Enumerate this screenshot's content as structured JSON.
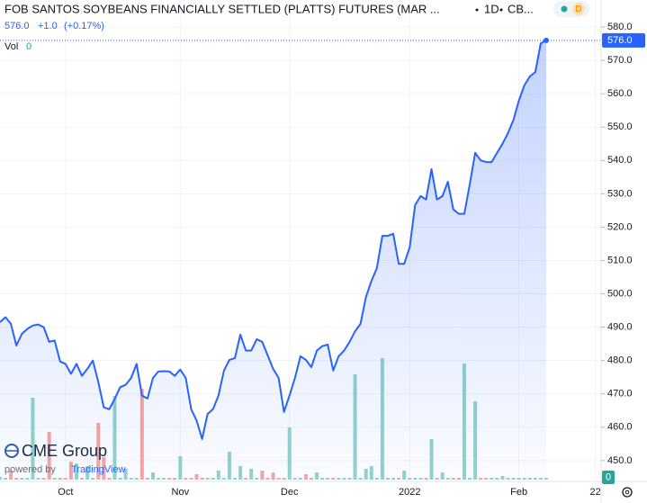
{
  "chart_data": {
    "type": "line",
    "title": "FOB SANTOS SOYBEANS FINANCIALLY SETTLED (PLATTS) FUTURES (MAR ...",
    "interval": "1D",
    "exchange": "CB...",
    "price": {
      "value": 576,
      "label": "576.0"
    },
    "change": {
      "value": 1,
      "label": "+1.0"
    },
    "change_pct": {
      "value": 0.17,
      "label": "(+0.17%)"
    },
    "color": "#2962ff",
    "grid": true,
    "categories": [
      null,
      null,
      null,
      null,
      null,
      null,
      null,
      null,
      null,
      null,
      null,
      null,
      "Oct",
      null,
      null,
      null,
      null,
      null,
      null,
      null,
      null,
      null,
      null,
      null,
      null,
      null,
      null,
      null,
      null,
      null,
      null,
      null,
      null,
      "Nov",
      null,
      null,
      null,
      null,
      null,
      null,
      null,
      null,
      null,
      null,
      null,
      null,
      null,
      null,
      null,
      null,
      null,
      null,
      null,
      "Dec",
      null,
      null,
      null,
      null,
      null,
      null,
      null,
      null,
      null,
      null,
      null,
      null,
      null,
      null,
      null,
      null,
      null,
      null,
      null,
      null,
      null,
      "2022",
      null,
      null,
      null,
      null,
      null,
      null,
      null,
      null,
      null,
      null,
      null,
      null,
      null,
      null,
      null,
      null,
      null,
      null,
      null,
      "Feb",
      null,
      null,
      null,
      null,
      null,
      null,
      null,
      null,
      null,
      null,
      null,
      null,
      null,
      "22"
    ],
    "values": [
      491.5,
      493,
      491,
      484.5,
      488,
      489.5,
      490.5,
      490.8,
      490,
      485.6,
      486,
      479.7,
      479,
      476,
      479,
      475.4,
      477.5,
      480,
      473.5,
      466,
      465.4,
      468.5,
      472,
      472.7,
      474.8,
      479,
      469.5,
      468.6,
      474.8,
      476.7,
      476.8,
      476.7,
      475.4,
      477.3,
      474.8,
      465.4,
      462,
      456.5,
      464,
      465.4,
      469.5,
      477,
      480.2,
      480.7,
      487.8,
      483,
      483,
      486.4,
      485.6,
      481.6,
      477.5,
      474.8,
      464.6,
      469.5,
      474.8,
      481.3,
      480.2,
      478,
      483,
      484.3,
      484.8,
      477,
      481.3,
      483,
      485.6,
      488.8,
      491,
      499.1,
      503.9,
      507.7,
      517.4,
      517.4,
      518,
      509,
      509,
      514,
      526.6,
      529.3,
      528.3,
      537.4,
      528.3,
      529.3,
      533.6,
      525.3,
      524,
      524,
      532.8,
      542.3,
      540,
      539.5,
      539.5,
      542.3,
      545,
      548.2,
      552.2,
      557.9,
      562.5,
      565.2,
      566.5,
      575.1,
      576,
      null,
      null,
      null,
      null,
      null,
      null,
      null,
      null,
      null
    ],
    "ylim": [
      444.3,
      588.1
    ],
    "yticks": [
      {
        "value": 450,
        "label": "450.0"
      },
      {
        "value": 460,
        "label": "460.0"
      },
      {
        "value": 470,
        "label": "470.0"
      },
      {
        "value": 480,
        "label": "480.0"
      },
      {
        "value": 490,
        "label": "490.0"
      },
      {
        "value": 500,
        "label": "500.0"
      },
      {
        "value": 510,
        "label": "510.0"
      },
      {
        "value": 520,
        "label": "520.0"
      },
      {
        "value": 530,
        "label": "530.0"
      },
      {
        "value": 540,
        "label": "540.0"
      },
      {
        "value": 550,
        "label": "550.0"
      },
      {
        "value": 560,
        "label": "560.0"
      },
      {
        "value": 570,
        "label": "570.0"
      },
      {
        "value": 580,
        "label": "580.0"
      }
    ],
    "last_price": {
      "value": 576,
      "label": "576.0"
    },
    "volume": {
      "label": "Vol",
      "current": 0,
      "up_color": "#92d3cc",
      "down_color": "#f5a6a3",
      "y2lim": [
        0,
        533
      ],
      "values": [
        3,
        2,
        10,
        2,
        2,
        2,
        91,
        2,
        2,
        53,
        2,
        2,
        2,
        20,
        18,
        2,
        15,
        2,
        63,
        25,
        2,
        93,
        2,
        12,
        2,
        2,
        101,
        2,
        8,
        2,
        2,
        2,
        2,
        26,
        2,
        2,
        6,
        2,
        2,
        2,
        10,
        2,
        31,
        2,
        15,
        2,
        12,
        2,
        10,
        2,
        8,
        2,
        2,
        58,
        2,
        2,
        6,
        2,
        8,
        2,
        2,
        2,
        2,
        2,
        2,
        117,
        2,
        12,
        15,
        2,
        135,
        2,
        2,
        2,
        10,
        2,
        2,
        2,
        2,
        45,
        2,
        8,
        2,
        2,
        2,
        129,
        2,
        87,
        2,
        2,
        2,
        2,
        4,
        2,
        2,
        2,
        2,
        2,
        2,
        2,
        2,
        null,
        null,
        null,
        null,
        null,
        null,
        null,
        null,
        null
      ]
    },
    "branding": {
      "logo": "CME Group",
      "powered": "powered by",
      "provider": "TradingView",
      "badge": "D"
    }
  }
}
